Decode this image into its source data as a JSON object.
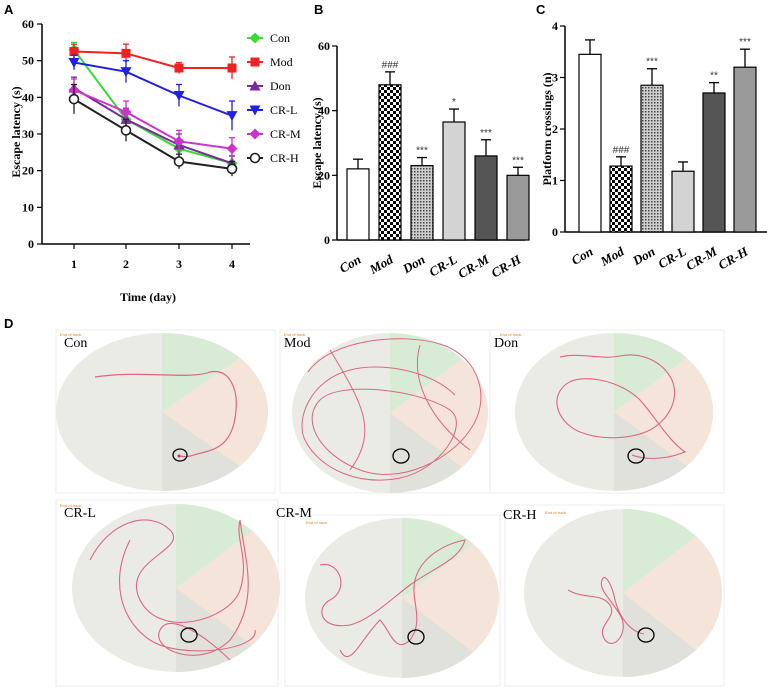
{
  "panels": {
    "a": "A",
    "b": "B",
    "c": "C",
    "d": "D"
  },
  "chart_data": [
    {
      "type": "line",
      "panel": "A",
      "xlabel": "Time (day)",
      "ylabel": "Escape latency (s)",
      "x": [
        1,
        2,
        3,
        4
      ],
      "x_ticks": [
        "1",
        "2",
        "3",
        "4"
      ],
      "ylim": [
        0,
        60
      ],
      "y_ticks": [
        "0",
        "10",
        "20",
        "30",
        "40",
        "50",
        "60"
      ],
      "legend_position": "right",
      "series": [
        {
          "name": "Con",
          "color": "#33dd33",
          "marker": "diamond",
          "values": [
            53,
            34,
            26,
            22
          ],
          "errors": [
            2,
            3,
            2,
            2
          ]
        },
        {
          "name": "Mod",
          "color": "#ee2222",
          "marker": "square",
          "values": [
            52.5,
            52,
            48,
            48
          ],
          "errors": [
            2,
            2.5,
            1.5,
            3
          ]
        },
        {
          "name": "Don",
          "color": "#7a2a9a",
          "marker": "triangle",
          "values": [
            42.5,
            34,
            27,
            22
          ],
          "errors": [
            3,
            3,
            3,
            2
          ]
        },
        {
          "name": "CR-L",
          "color": "#2222dd",
          "marker": "triangle-down",
          "values": [
            49.5,
            47,
            40.5,
            35
          ],
          "errors": [
            2,
            3,
            3,
            4
          ]
        },
        {
          "name": "CR-M",
          "color": "#cc33cc",
          "marker": "diamond",
          "values": [
            42,
            36,
            28,
            26
          ],
          "errors": [
            3,
            3,
            3,
            3
          ]
        },
        {
          "name": "CR-H",
          "color": "#222222",
          "marker": "circle",
          "values": [
            39.5,
            31,
            22.5,
            20.5
          ],
          "errors": [
            4,
            3,
            2,
            2
          ]
        }
      ]
    },
    {
      "type": "bar",
      "panel": "B",
      "ylabel": "Escape latency (s)",
      "categories": [
        "Con",
        "Mod",
        "Don",
        "CR-L",
        "CR-M",
        "CR-H"
      ],
      "values": [
        22,
        48,
        23,
        36.5,
        26,
        20
      ],
      "errors": [
        3,
        4,
        2.5,
        4,
        5,
        2.5
      ],
      "annotations": [
        "",
        "###",
        "***",
        "*",
        "***",
        "***"
      ],
      "ylim": [
        0,
        60
      ],
      "y_ticks": [
        "0",
        "20",
        "40",
        "60"
      ],
      "fills": [
        "white",
        "checker",
        "dots",
        "#d3d3d3",
        "#555555",
        "#9a9a9a"
      ]
    },
    {
      "type": "bar",
      "panel": "C",
      "ylabel": "Platform crossings (n)",
      "categories": [
        "Con",
        "Mod",
        "Don",
        "CR-L",
        "CR-M",
        "CR-H"
      ],
      "values": [
        3.45,
        1.28,
        2.85,
        1.18,
        2.7,
        3.2
      ],
      "errors": [
        0.28,
        0.18,
        0.32,
        0.18,
        0.2,
        0.35
      ],
      "annotations": [
        "",
        "###",
        "***",
        "",
        "**",
        "***"
      ],
      "ylim": [
        0,
        4
      ],
      "y_ticks": [
        "0",
        "1",
        "2",
        "3",
        "4"
      ],
      "fills": [
        "white",
        "checker",
        "dots",
        "#d3d3d3",
        "#555555",
        "#9a9a9a"
      ]
    }
  ],
  "tracks": [
    {
      "label": "Con",
      "caption": "End of track"
    },
    {
      "label": "Mod",
      "caption": "End of track"
    },
    {
      "label": "Don",
      "caption": "End of track"
    },
    {
      "label": "CR-L",
      "caption": "End of track"
    },
    {
      "label": "CR-M",
      "caption": "End of track"
    },
    {
      "label": "CR-H",
      "caption": "End of track"
    }
  ]
}
